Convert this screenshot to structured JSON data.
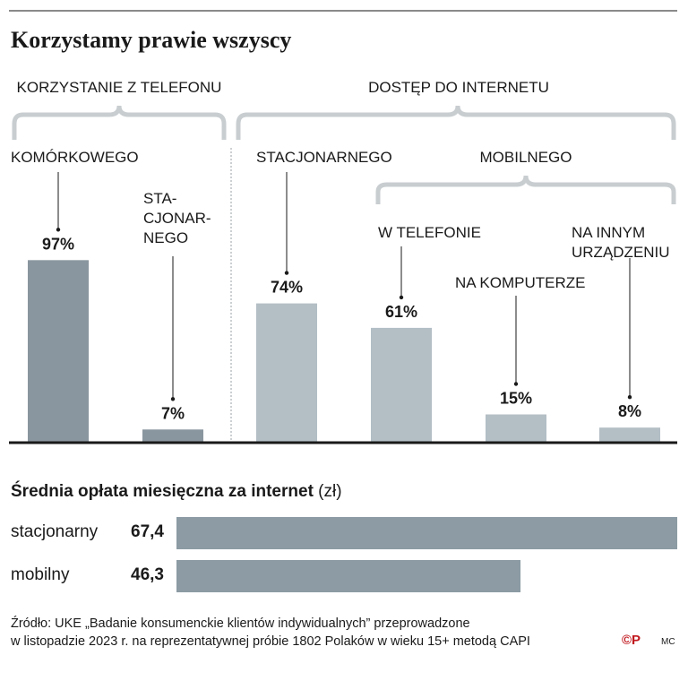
{
  "title": "Korzystamy prawie wszyscy",
  "chart_data": {
    "type": "bar",
    "groups": [
      {
        "name": "KORZYSTANIE Z TELEFONU",
        "categories": [
          "KOMÓRKOWEGO",
          "STA- CJONAR- NEGO"
        ]
      },
      {
        "name": "DOSTĘP DO INTERNETU",
        "categories": [
          "STACJONARNEGO",
          "MOBILNEGO: W TELEFONIE",
          "MOBILNEGO: NA KOMPUTERZE",
          "MOBILNEGO: NA INNYM URZĄDZENIU"
        ]
      }
    ],
    "subgroup": "MOBILNEGO",
    "categories": [
      "KOMÓRKOWEGO",
      "STA-CJONAR-NEGO",
      "STACJONARNEGO",
      "W TELEFONIE",
      "NA KOMPUTERZE",
      "NA INNYM URZĄDZENIU"
    ],
    "values": [
      97,
      7,
      74,
      61,
      15,
      8
    ],
    "value_labels": [
      "97%",
      "7%",
      "74%",
      "61%",
      "15%",
      "8%"
    ],
    "unit": "%",
    "colors": {
      "phone": "#8a969f",
      "internet": "#b3bec5"
    },
    "ylim": [
      0,
      100
    ],
    "grid": false
  },
  "labels": {
    "group_phone": "KORZYSTANIE Z TELEFONU",
    "group_internet": "DOSTĘP DO INTERNETU",
    "mobile": "MOBILNEGO",
    "cat1": "KOMÓRKOWEGO",
    "cat2_l1": "STA-",
    "cat2_l2": "CJONAR-",
    "cat2_l3": "NEGO",
    "cat3": "STACJONARNEGO",
    "cat4": "W TELEFONIE",
    "cat5": "NA KOMPUTERZE",
    "cat6_l1": "NA INNYM",
    "cat6_l2": "URZĄDZENIU"
  },
  "fees": {
    "title_bold": "Średnia opłata miesięczna za internet",
    "title_unit": "(zł)",
    "rows": [
      {
        "name": "stacjonarny",
        "value_label": "67,4",
        "value": 67.4
      },
      {
        "name": "mobilny",
        "value_label": "46,3",
        "value": 46.3
      }
    ],
    "bar_color": "#8c9ba4"
  },
  "source_line1": "Źródło: UKE „Badanie konsumenckie klientów indywidualnych” przeprowadzone",
  "source_line2": "w listopadzie 2023 r. na reprezentatywnej próbie 1802 Polaków w wieku 15+ metodą CAPI",
  "author": "MC",
  "logo": "©P"
}
